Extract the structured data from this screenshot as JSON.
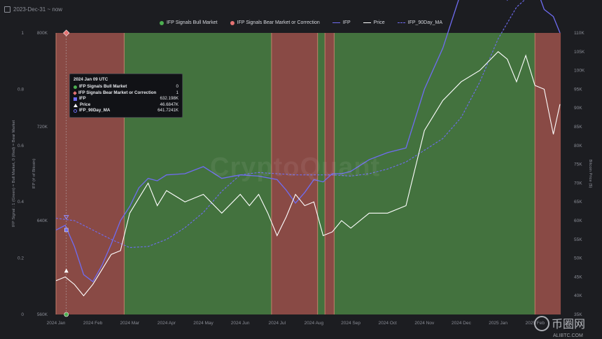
{
  "header": {
    "date_range": "2023-Dec-31 ~ now"
  },
  "legend": [
    {
      "label": "IFP Signals Bull Market",
      "color": "#4caf50",
      "kind": "dot"
    },
    {
      "label": "IFP Signals Bear Market or Correction",
      "color": "#e57373",
      "kind": "dot"
    },
    {
      "label": "IFP",
      "color": "#6f6cf2",
      "kind": "line"
    },
    {
      "label": "Price",
      "color": "#ffffff",
      "kind": "line"
    },
    {
      "label": "IFP_90Day_MA",
      "color": "#6f6cf2",
      "kind": "dash"
    }
  ],
  "tooltip": {
    "date": "2024 Jan 09 UTC",
    "rows": [
      {
        "icon": "c-bull",
        "label": "IFP Signals Bull Market",
        "value": "0"
      },
      {
        "icon": "c-bear",
        "label": "IFP Signals Bear Market or Correction",
        "value": "1"
      },
      {
        "icon": "c-ifp",
        "label": "IFP",
        "value": "632.198K"
      },
      {
        "icon": "c-price",
        "label": "Price",
        "value": "46.6847K"
      },
      {
        "icon": "c-ma",
        "label": "IFP_90Day_MA",
        "value": "641.7241K"
      }
    ]
  },
  "watermark": "CryptoQuant",
  "corner_logo": {
    "name": "币圈网",
    "url": "ALIBTC.COM"
  },
  "chart_data": {
    "type": "line",
    "x_ticks": [
      "2024 Jan",
      "2024 Feb",
      "2024 Mar",
      "2024 Apr",
      "2024 May",
      "2024 Jun",
      "2024 Jul",
      "2024 Aug",
      "2024 Sep",
      "2024 Oct",
      "2024 Nov",
      "2024 Dec",
      "2025 Jan",
      "2025 Feb"
    ],
    "axis_signal": {
      "label": "IFP Signal : 1 (Green) = Bull Market, 0 (Red) = Bear Market",
      "ticks": [
        "0",
        "0.2",
        "0.4",
        "0.6",
        "0.8",
        "1"
      ],
      "ylim": [
        0,
        1
      ]
    },
    "axis_ifp": {
      "label": "IFP (# of Bitcoin)",
      "ticks": [
        "560K",
        "640K",
        "720K",
        "800K"
      ],
      "ylim": [
        560,
        800
      ]
    },
    "axis_price": {
      "label": "Bitcoin Price ($)",
      "ticks": [
        "35K",
        "40K",
        "45K",
        "50K",
        "55K",
        "60K",
        "65K",
        "70K",
        "75K",
        "80K",
        "85K",
        "90K",
        "95K",
        "100K",
        "105K",
        "110K"
      ],
      "ylim": [
        35,
        110
      ]
    },
    "regimes": [
      {
        "start": 0.0,
        "end": 1.85,
        "signal": 0
      },
      {
        "start": 1.85,
        "end": 5.85,
        "signal": 1
      },
      {
        "start": 5.85,
        "end": 7.1,
        "signal": 0
      },
      {
        "start": 7.1,
        "end": 7.3,
        "signal": 1
      },
      {
        "start": 7.3,
        "end": 7.55,
        "signal": 0
      },
      {
        "start": 7.55,
        "end": 13.0,
        "signal": 1
      },
      {
        "start": 13.0,
        "end": 13.7,
        "signal": 0
      }
    ],
    "series": [
      {
        "name": "Price",
        "color": "#ffffff",
        "x": [
          0,
          0.25,
          0.5,
          0.75,
          1,
          1.25,
          1.5,
          1.75,
          2,
          2.25,
          2.5,
          2.75,
          3,
          3.5,
          4,
          4.5,
          5,
          5.25,
          5.5,
          5.75,
          6,
          6.25,
          6.5,
          6.75,
          7,
          7.25,
          7.5,
          7.75,
          8,
          8.5,
          9,
          9.5,
          10,
          10.5,
          11,
          11.5,
          12,
          12.25,
          12.5,
          12.75,
          13,
          13.25,
          13.5,
          13.68
        ],
        "values": [
          44,
          45,
          43,
          40,
          43,
          47,
          51,
          52,
          62,
          66,
          70,
          64,
          68,
          65,
          67,
          62,
          67,
          64,
          67,
          62,
          56,
          61,
          67,
          64,
          65,
          56,
          57,
          60,
          58,
          62,
          62,
          64,
          84,
          92,
          97,
          100,
          105,
          103,
          97,
          104,
          96,
          95,
          83,
          91
        ]
      },
      {
        "name": "IFP",
        "color": "#6f6cf2",
        "x": [
          0,
          0.25,
          0.5,
          0.75,
          1,
          1.25,
          1.5,
          1.75,
          2,
          2.25,
          2.5,
          2.75,
          3,
          3.5,
          4,
          4.5,
          5,
          5.5,
          6,
          6.25,
          6.5,
          6.75,
          7,
          7.25,
          7.5,
          7.75,
          8,
          8.5,
          9,
          9.5,
          10,
          10.5,
          11,
          11.5,
          12,
          12.25,
          12.5,
          12.75,
          13,
          13.25,
          13.5,
          13.68
        ],
        "values": [
          632,
          636,
          618,
          594,
          588,
          602,
          620,
          640,
          652,
          668,
          676,
          674,
          679,
          680,
          686,
          676,
          679,
          678,
          675,
          666,
          655,
          664,
          675,
          673,
          680,
          680,
          682,
          692,
          698,
          702,
          752,
          787,
          835,
          843,
          842,
          828,
          841,
          843,
          842,
          820,
          814,
          800
        ]
      },
      {
        "name": "IFP_90Day_MA",
        "color": "#6f6cf2",
        "dashed": true,
        "x": [
          0,
          0.5,
          1,
          1.5,
          2,
          2.5,
          3,
          3.5,
          4,
          4.5,
          5,
          5.5,
          6,
          6.5,
          7,
          7.5,
          8,
          8.5,
          9,
          9.5,
          10,
          10.5,
          11,
          11.5,
          12,
          12.5,
          13,
          13.68
        ],
        "values": [
          642,
          640,
          632,
          624,
          617,
          618,
          624,
          634,
          647,
          665,
          679,
          681,
          680,
          679,
          679,
          679,
          678,
          680,
          684,
          690,
          700,
          710,
          728,
          758,
          795,
          822,
          836,
          838
        ]
      }
    ]
  }
}
